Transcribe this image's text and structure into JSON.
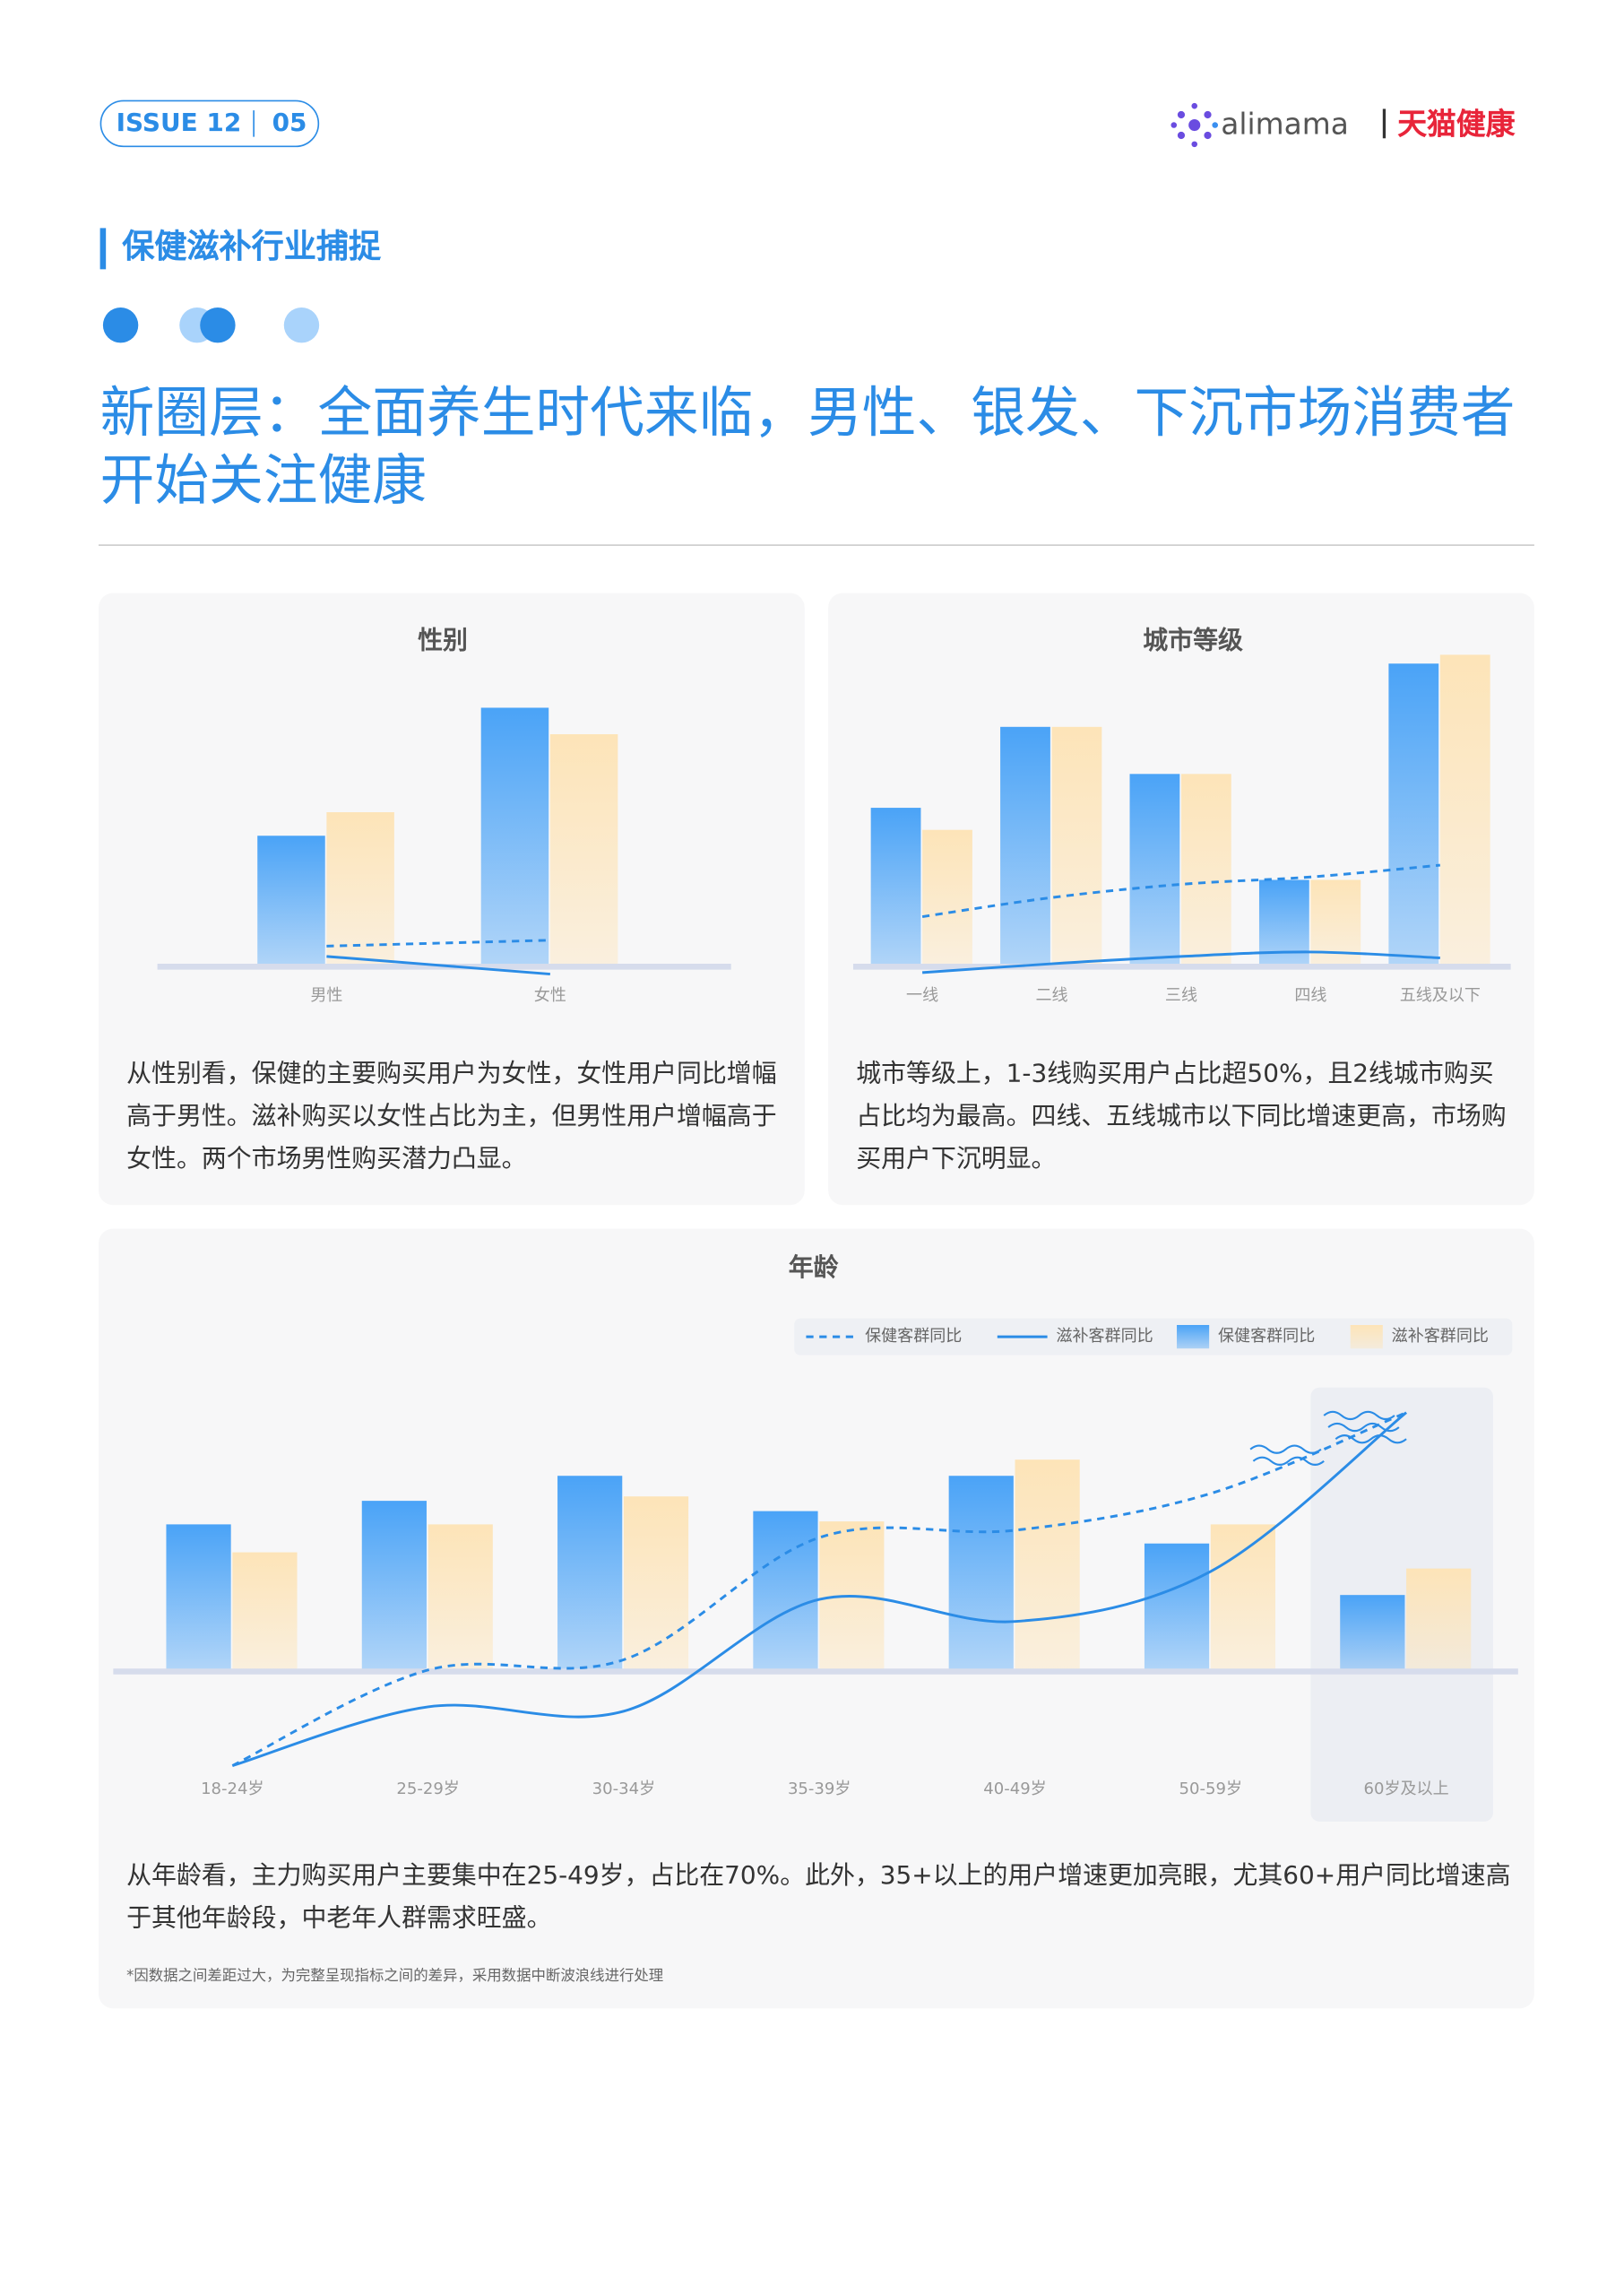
{
  "header": {
    "issue": "ISSUE 12",
    "page": "05",
    "brand": "alimama",
    "brand_sub": "天猫健康"
  },
  "section": "保健滋补行业捕捉",
  "title": "新圈层：全面养生时代来临，男性、银发、下沉市场消费者开始关注健康",
  "chart_data": [
    {
      "type": "bar",
      "title": "性别",
      "categories": [
        "男性",
        "女性"
      ],
      "series": [
        {
          "kind": "bar",
          "color": "#4aa3f7",
          "values": [
            89,
            176
          ]
        },
        {
          "kind": "bar",
          "color": "#fde4b8",
          "values": [
            105,
            158
          ]
        },
        {
          "kind": "line",
          "dashed": true,
          "color": "#2b8ce6",
          "values": [
            14,
            18
          ]
        },
        {
          "kind": "line",
          "dashed": false,
          "color": "#2b8ce6",
          "values": [
            7,
            -5
          ]
        }
      ],
      "ylim": [
        -10,
        180
      ],
      "description": "从性别看，保健的主要购买用户为女性，女性用户同比增幅高于男性。滋补购买以女性占比为主，但男性用户增幅高于女性。两个市场男性购买潜力凸显。"
    },
    {
      "type": "bar",
      "title": "城市等级",
      "categories": [
        "一线",
        "二线",
        "三线",
        "四线",
        "五线及以下"
      ],
      "series": [
        {
          "kind": "bar",
          "color": "#4aa3f7",
          "values": [
            108,
            163,
            131,
            59,
            206
          ]
        },
        {
          "kind": "bar",
          "color": "#fde4b8",
          "values": [
            93,
            163,
            131,
            59,
            212
          ]
        },
        {
          "kind": "line",
          "dashed": true,
          "color": "#2b8ce6",
          "values": [
            34,
            47,
            56,
            61,
            69
          ]
        },
        {
          "kind": "line",
          "dashed": false,
          "color": "#2b8ce6",
          "values": [
            -4,
            2,
            7,
            10,
            6
          ]
        }
      ],
      "ylim": [
        -10,
        215
      ],
      "description": "城市等级上，1-3线购买用户占比超50%，且2线城市购买占比均为最高。四线、五线城市以下同比增速更高，市场购买用户下沉明显。"
    },
    {
      "type": "bar",
      "title": "年龄",
      "categories": [
        "18-24岁",
        "25-29岁",
        "30-34岁",
        "35-39岁",
        "40-49岁",
        "50-59岁",
        "60岁及以上"
      ],
      "series": [
        {
          "name": "保健客群同比",
          "kind": "line",
          "dashed": true,
          "color": "#2b8ce6",
          "values": [
            -64,
            1,
            8,
            91,
            96,
            121,
            176
          ]
        },
        {
          "name": "滋补客群同比",
          "kind": "line",
          "dashed": false,
          "color": "#2b8ce6",
          "values": [
            -64,
            -24,
            -27,
            49,
            34,
            68,
            176
          ]
        },
        {
          "name": "保健客群同比",
          "kind": "bar",
          "color": "#4aa3f7",
          "values": [
            100,
            116,
            133,
            109,
            133,
            87,
            52
          ]
        },
        {
          "name": "滋补客群同比",
          "kind": "bar",
          "color": "#fde4b8",
          "values": [
            81,
            100,
            119,
            102,
            144,
            100,
            70
          ]
        }
      ],
      "ylim": [
        -70,
        190
      ],
      "legend": true,
      "description": "从年龄看，主力购买用户主要集中在25-49岁，占比在70%。此外，35+以上的用户增速更加亮眼，尤其60+用户同比增速高于其他年龄段，中老年人群需求旺盛。",
      "note": "*因数据之间差距过大，为完整呈现指标之间的差异，采用数据中断波浪线进行处理"
    }
  ]
}
